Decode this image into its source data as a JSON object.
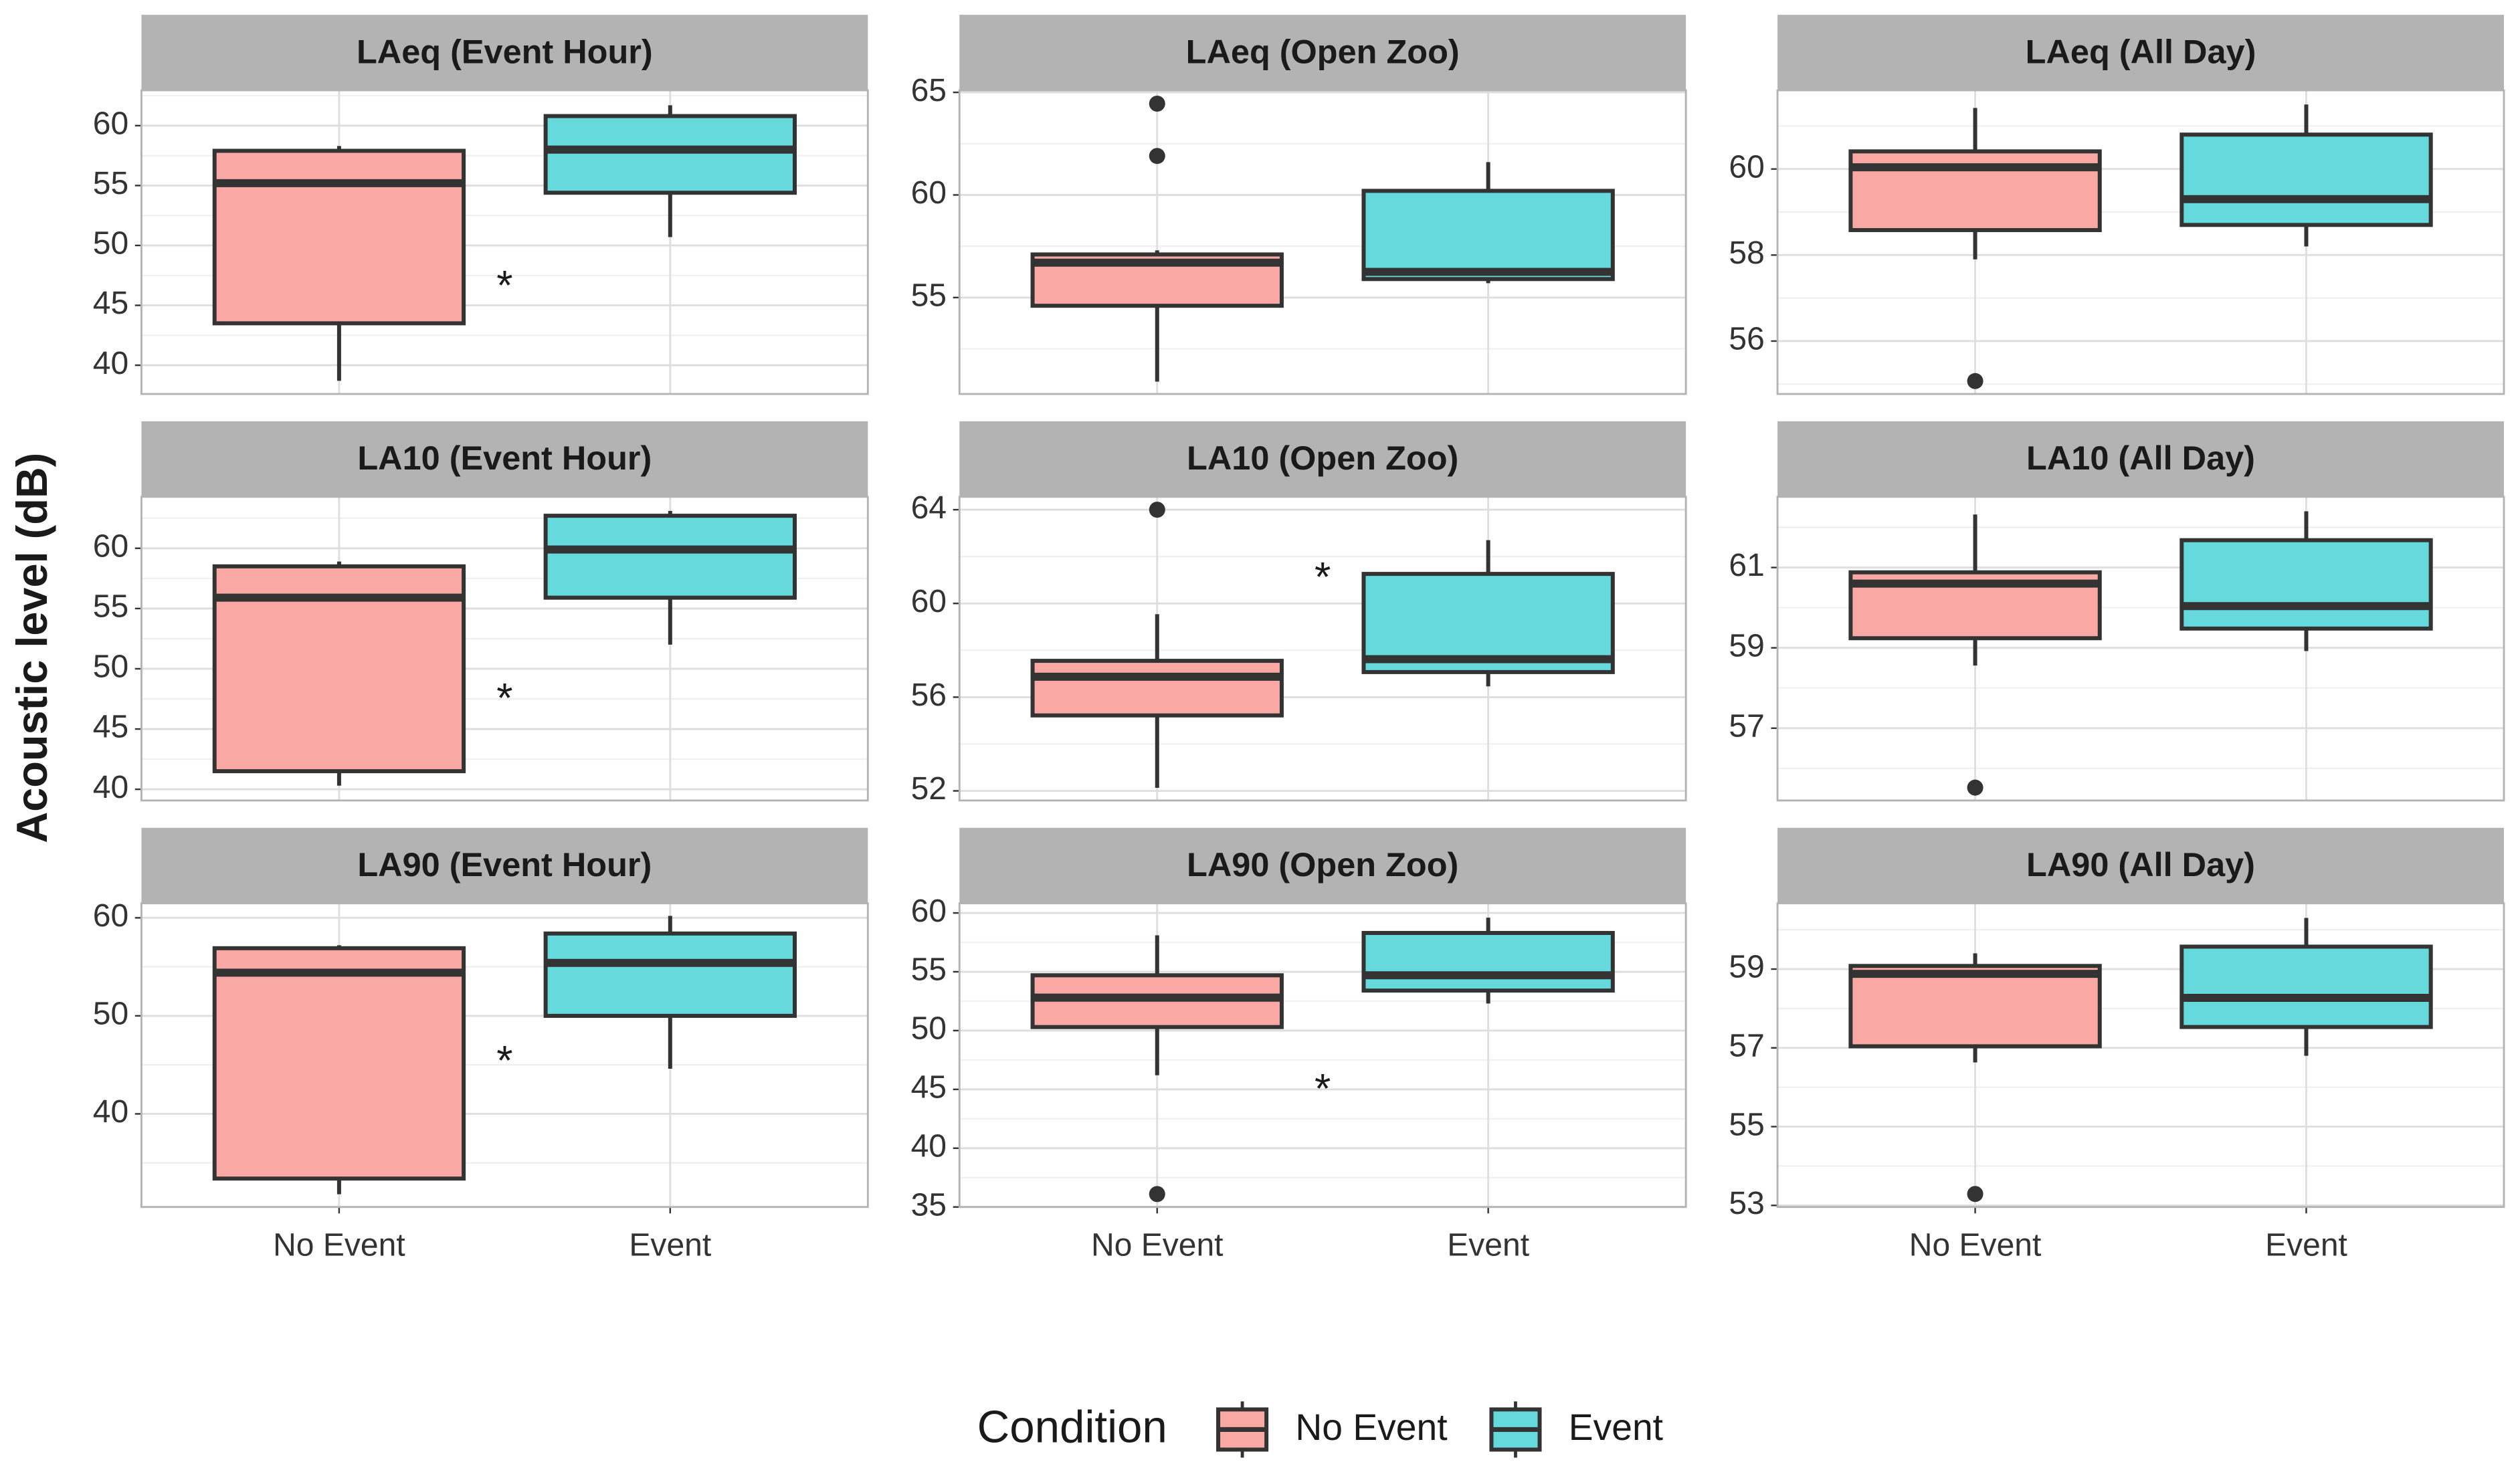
{
  "figure": {
    "ylabel": "Acoustic level (dB)",
    "categories": [
      "No Event",
      "Event"
    ],
    "legend_title": "Condition",
    "legend": [
      {
        "name": "No Event",
        "color": "#f9a8a3"
      },
      {
        "name": "Event",
        "color": "#66d9dc"
      }
    ]
  },
  "chart_data": [
    {
      "type": "box",
      "title": "LAeq (Event Hour)",
      "ylim": [
        37.6,
        62.95
      ],
      "yticks": [
        40,
        45,
        50,
        55,
        60
      ],
      "boxes": [
        {
          "min": 38.7,
          "q1": 43.5,
          "median": 55.2,
          "q3": 57.9,
          "max": 58.3,
          "outliers": []
        },
        {
          "min": 50.7,
          "q1": 54.4,
          "median": 58,
          "q3": 60.8,
          "max": 61.7,
          "outliers": []
        }
      ],
      "annotation": {
        "text": "*",
        "y": 47.2
      }
    },
    {
      "type": "box",
      "title": "LAeq (Open Zoo)",
      "ylim": [
        50.3,
        65.1
      ],
      "yticks": [
        55,
        60,
        65
      ],
      "boxes": [
        {
          "min": 50.9,
          "q1": 54.6,
          "median": 56.7,
          "q3": 57.1,
          "max": 57.3,
          "outliers": [
            64.45,
            61.9
          ]
        },
        {
          "min": 55.7,
          "q1": 55.9,
          "median": 56.25,
          "q3": 60.2,
          "max": 61.6,
          "outliers": []
        }
      ]
    },
    {
      "type": "box",
      "title": "LAeq (All Day)",
      "ylim": [
        54.77,
        61.83
      ],
      "yticks": [
        56,
        58,
        60
      ],
      "boxes": [
        {
          "min": 57.9,
          "q1": 58.58,
          "median": 60.04,
          "q3": 60.41,
          "max": 61.42,
          "outliers": [
            55.07
          ]
        },
        {
          "min": 58.2,
          "q1": 58.7,
          "median": 59.3,
          "q3": 60.8,
          "max": 61.5,
          "outliers": []
        }
      ]
    },
    {
      "type": "box",
      "title": "LA10 (Event Hour)",
      "ylim": [
        39.07,
        64.27
      ],
      "yticks": [
        40,
        45,
        50,
        55,
        60
      ],
      "boxes": [
        {
          "min": 40.3,
          "q1": 41.5,
          "median": 55.9,
          "q3": 58.5,
          "max": 58.9,
          "outliers": []
        },
        {
          "min": 52,
          "q1": 55.9,
          "median": 59.9,
          "q3": 62.7,
          "max": 63.1,
          "outliers": []
        }
      ],
      "annotation": {
        "text": "*",
        "y": 48.1
      }
    },
    {
      "type": "box",
      "title": "LA10 (Open Zoo)",
      "ylim": [
        51.59,
        64.55
      ],
      "yticks": [
        52,
        56,
        60,
        64
      ],
      "boxes": [
        {
          "min": 52.13,
          "q1": 55.22,
          "median": 56.87,
          "q3": 57.55,
          "max": 59.54,
          "outliers": [
            64
          ]
        },
        {
          "min": 56.46,
          "q1": 57.07,
          "median": 57.62,
          "q3": 61.26,
          "max": 62.7,
          "outliers": []
        }
      ],
      "annotation": {
        "text": "*",
        "y": 61.4
      }
    },
    {
      "type": "box",
      "title": "LA10 (All Day)",
      "ylim": [
        55.2,
        62.76
      ],
      "yticks": [
        57,
        59,
        61
      ],
      "boxes": [
        {
          "min": 58.56,
          "q1": 59.24,
          "median": 60.6,
          "q3": 60.88,
          "max": 62.32,
          "outliers": [
            55.52
          ]
        },
        {
          "min": 58.92,
          "q1": 59.48,
          "median": 60.04,
          "q3": 61.68,
          "max": 62.4,
          "outliers": []
        }
      ]
    },
    {
      "type": "box",
      "title": "LA90 (Event Hour)",
      "ylim": [
        30.5,
        61.48
      ],
      "yticks": [
        40,
        50,
        60
      ],
      "boxes": [
        {
          "min": 31.8,
          "q1": 33.4,
          "median": 54.4,
          "q3": 56.9,
          "max": 57.2,
          "outliers": []
        },
        {
          "min": 44.6,
          "q1": 50,
          "median": 55.4,
          "q3": 58.4,
          "max": 60.2,
          "outliers": []
        }
      ],
      "annotation": {
        "text": "*",
        "y": 46.1
      }
    },
    {
      "type": "box",
      "title": "LA90 (Open Zoo)",
      "ylim": [
        35,
        60.82
      ],
      "yticks": [
        35,
        40,
        45,
        50,
        55,
        60
      ],
      "boxes": [
        {
          "min": 46.2,
          "q1": 50.3,
          "median": 52.8,
          "q3": 54.7,
          "max": 58.1,
          "outliers": [
            36.1
          ]
        },
        {
          "min": 52.3,
          "q1": 53.4,
          "median": 54.7,
          "q3": 58.3,
          "max": 59.6,
          "outliers": []
        }
      ],
      "annotation": {
        "text": "*",
        "y": 45.6
      }
    },
    {
      "type": "box",
      "title": "LA90 (All Day)",
      "ylim": [
        52.96,
        60.67
      ],
      "yticks": [
        53,
        55,
        57,
        59
      ],
      "boxes": [
        {
          "min": 56.63,
          "q1": 57.04,
          "median": 58.88,
          "q3": 59.08,
          "max": 59.4,
          "outliers": [
            53.29
          ]
        },
        {
          "min": 56.8,
          "q1": 57.53,
          "median": 58.27,
          "q3": 59.57,
          "max": 60.3,
          "outliers": []
        }
      ]
    }
  ]
}
